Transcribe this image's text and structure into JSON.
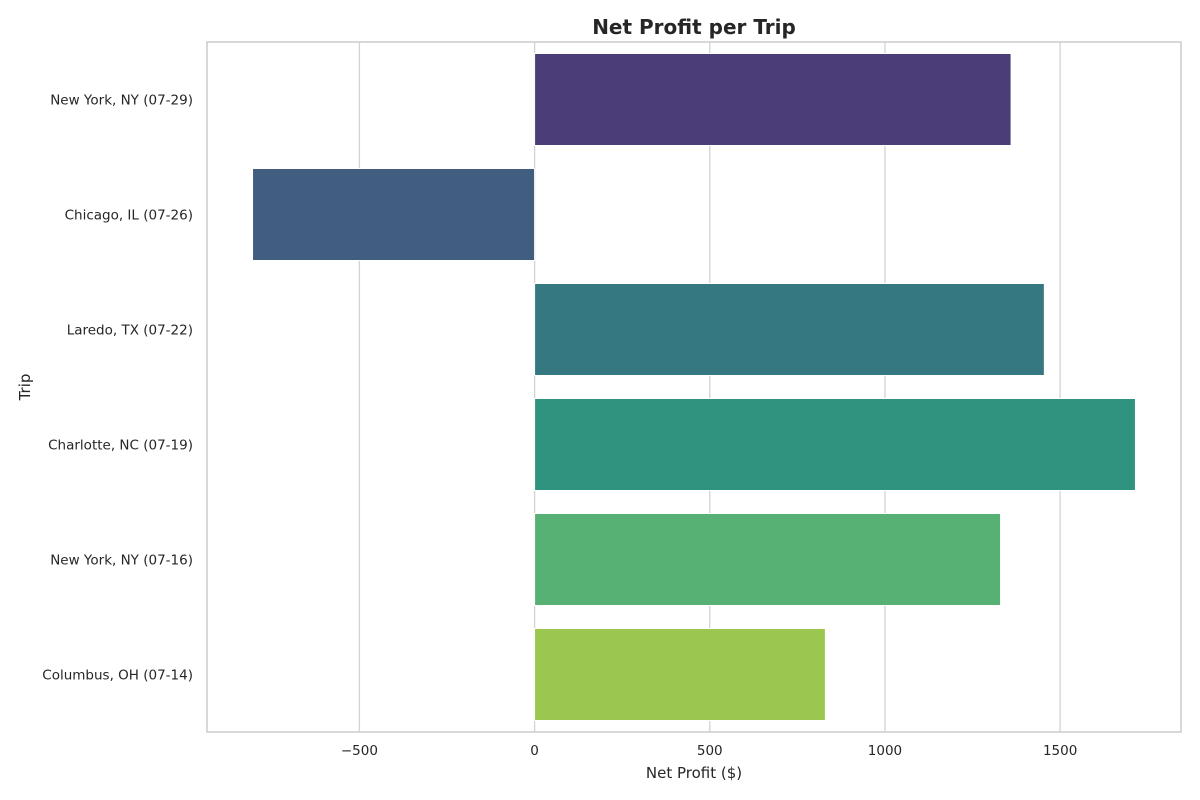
{
  "chart_data": {
    "type": "bar",
    "orientation": "horizontal",
    "title": "Net Profit per Trip",
    "xlabel": "Net Profit ($)",
    "ylabel": "Trip",
    "categories": [
      "New York, NY (07-29)",
      "Chicago, IL (07-26)",
      "Laredo, TX (07-22)",
      "Charlotte, NC (07-19)",
      "New York, NY (07-16)",
      "Columbus, OH (07-14)"
    ],
    "values": [
      1360,
      -805,
      1455,
      1715,
      1330,
      830
    ],
    "colors": [
      "#4b3d77",
      "#415e80",
      "#357881",
      "#30937f",
      "#58b174",
      "#9bc64f"
    ],
    "xlim": [
      -935,
      1845
    ],
    "xticks": [
      -500,
      0,
      500,
      1000,
      1500
    ],
    "xtick_labels": [
      "−500",
      "0",
      "500",
      "1000",
      "1500"
    ],
    "grid": true,
    "grid_axis": "x",
    "legend": "none"
  }
}
